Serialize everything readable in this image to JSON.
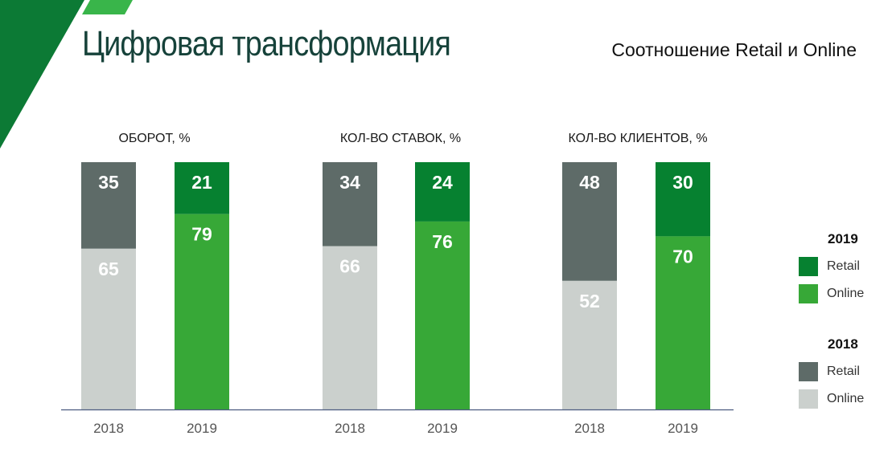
{
  "header": {
    "title": "Цифровая трансформация",
    "subtitle": "Соотношение Retail и Online"
  },
  "colors": {
    "retail_2019": "#068130",
    "online_2019": "#37a837",
    "retail_2018": "#5e6b68",
    "online_2018": "#cbd0cd",
    "axis": "#4a5a80",
    "deco_dark": "#0c7a35",
    "deco_light": "#39b54a"
  },
  "chart_data": {
    "type": "bar",
    "stacked": true,
    "ylim": [
      0,
      100
    ],
    "groups": [
      {
        "title": "ОБОРОТ, %",
        "bars": [
          {
            "year": "2018",
            "retail": 35,
            "online": 65
          },
          {
            "year": "2019",
            "retail": 21,
            "online": 79
          }
        ]
      },
      {
        "title": "КОЛ-ВО СТАВОК, %",
        "bars": [
          {
            "year": "2018",
            "retail": 34,
            "online": 66
          },
          {
            "year": "2019",
            "retail": 24,
            "online": 76
          }
        ]
      },
      {
        "title": "КОЛ-ВО КЛИЕНТОВ, %",
        "bars": [
          {
            "year": "2018",
            "retail": 48,
            "online": 52
          },
          {
            "year": "2019",
            "retail": 30,
            "online": 70
          }
        ]
      }
    ],
    "legend": [
      {
        "year": "2019",
        "items": [
          {
            "label": "Retail",
            "key": "retail_2019"
          },
          {
            "label": "Online",
            "key": "online_2019"
          }
        ]
      },
      {
        "year": "2018",
        "items": [
          {
            "label": "Retail",
            "key": "retail_2018"
          },
          {
            "label": "Online",
            "key": "online_2018"
          }
        ]
      }
    ]
  }
}
